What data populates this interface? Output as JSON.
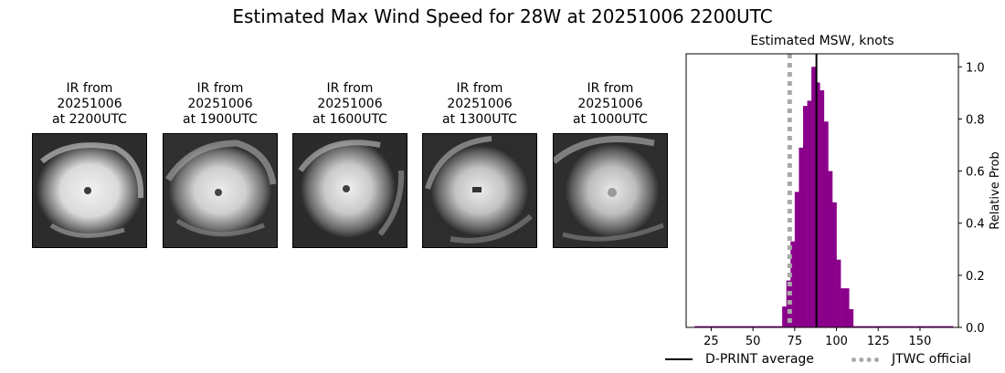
{
  "title": "Estimated Max Wind Speed for 28W at 20251006 2200UTC",
  "ir_panels": [
    {
      "line1": "IR from",
      "line2": "20251006",
      "line3": "at 2200UTC"
    },
    {
      "line1": "IR from",
      "line2": "20251006",
      "line3": "at 1900UTC"
    },
    {
      "line1": "IR from",
      "line2": "20251006",
      "line3": "at 1600UTC"
    },
    {
      "line1": "IR from",
      "line2": "20251006",
      "line3": "at 1300UTC"
    },
    {
      "line1": "IR from",
      "line2": "20251006",
      "line3": "at 1000UTC"
    }
  ],
  "legend": {
    "dprint_label": "D-PRINT average",
    "jtwc_label": "JTWC official"
  },
  "colors": {
    "bars": "#8b008b",
    "dprint_line": "#000000",
    "jtwc_line": "#a9a9a9"
  },
  "chart_data": {
    "type": "bar",
    "title": "Estimated MSW, knots",
    "xlabel": "",
    "ylabel": "Relative Prob",
    "xlim": [
      10,
      173
    ],
    "ylim": [
      0,
      1.05
    ],
    "xticks": [
      25,
      50,
      75,
      100,
      125,
      150
    ],
    "yticks": [
      0.0,
      0.2,
      0.4,
      0.6,
      0.8,
      1.0
    ],
    "ytick_labels": [
      "0.0",
      "0.2",
      "0.4",
      "0.6",
      "0.8",
      "1.0"
    ],
    "y_axis_side": "right",
    "bin_width": 2.5,
    "bins": [
      {
        "x": 68.75,
        "y": 0.08
      },
      {
        "x": 71.25,
        "y": 0.18
      },
      {
        "x": 73.75,
        "y": 0.33
      },
      {
        "x": 76.25,
        "y": 0.52
      },
      {
        "x": 78.75,
        "y": 0.69
      },
      {
        "x": 81.25,
        "y": 0.85
      },
      {
        "x": 83.75,
        "y": 0.87
      },
      {
        "x": 86.25,
        "y": 1.0
      },
      {
        "x": 88.75,
        "y": 0.94
      },
      {
        "x": 91.25,
        "y": 0.91
      },
      {
        "x": 93.75,
        "y": 0.79
      },
      {
        "x": 96.25,
        "y": 0.6
      },
      {
        "x": 98.75,
        "y": 0.48
      },
      {
        "x": 101.25,
        "y": 0.26
      },
      {
        "x": 103.75,
        "y": 0.15
      },
      {
        "x": 106.25,
        "y": 0.15
      },
      {
        "x": 108.75,
        "y": 0.07
      }
    ],
    "baseline_range": [
      15,
      170
    ],
    "dprint_average": 88,
    "jtwc_official": 72
  }
}
